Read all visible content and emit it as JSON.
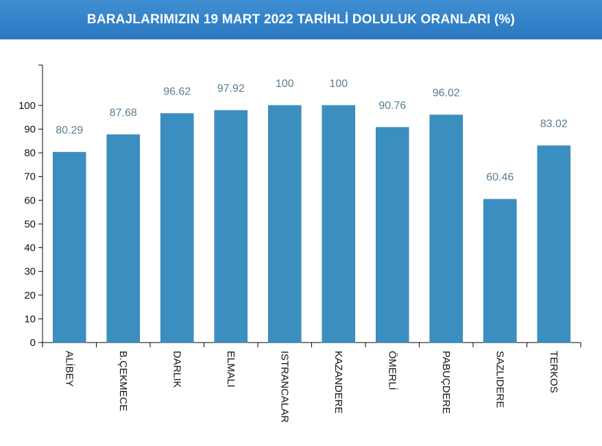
{
  "header": {
    "title": "BARAJLARIMIZIN 19 MART 2022 TARİHLİ DOLULUK ORANLARI (%)"
  },
  "colors": {
    "header_bg": "#2f80c8",
    "bar": "#3b8fc0",
    "value_label": "#5b7c8f",
    "axis": "#000000"
  },
  "chart_data": {
    "type": "bar",
    "title": "BARAJLARIMIZIN 19 MART 2022 TARİHLİ DOLULUK ORANLARI (%)",
    "xlabel": "",
    "ylabel": "",
    "categories": [
      "ALİBEY",
      "B.ÇEKMECE",
      "DARLIK",
      "ELMALI",
      "ISTRANCALAR",
      "KAZANDERE",
      "ÖMERLİ",
      "PABUÇDERE",
      "SAZLIDERE",
      "TERKOS"
    ],
    "values": [
      80.29,
      87.68,
      96.62,
      97.92,
      100,
      100,
      90.76,
      96.02,
      60.46,
      83.02
    ],
    "value_labels": [
      "80.29",
      "87.68",
      "96.62",
      "97.92",
      "100",
      "100",
      "90.76",
      "96.02",
      "60.46",
      "83.02"
    ],
    "yticks": [
      0,
      10,
      20,
      30,
      40,
      50,
      60,
      70,
      80,
      90,
      100
    ],
    "ylim": [
      0,
      117
    ],
    "grid": false,
    "legend": "none"
  }
}
